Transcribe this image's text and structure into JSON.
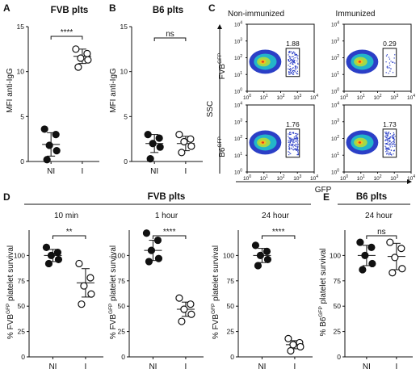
{
  "panels": {
    "A": {
      "letter": "A",
      "title": "FVB plts",
      "ylabel": "MFI anti-IgG",
      "sig": "****"
    },
    "B": {
      "letter": "B",
      "title": "B6 plts",
      "ylabel": "MFI anti-IgG",
      "sig": "ns"
    },
    "C": {
      "letter": "C",
      "col_labels": [
        "Non-immunized",
        "Immunized"
      ],
      "row_labels": [
        "FVB",
        "B6"
      ],
      "row_label_sup": "GFP",
      "xlabel": "GFP",
      "ylabel": "SSC",
      "gate_values": [
        "1.88",
        "0.29",
        "1.76",
        "1.73"
      ],
      "tick_base": "10",
      "tick_exps": [
        "0",
        "1",
        "2",
        "3",
        "4"
      ]
    },
    "D": {
      "letter": "D",
      "group_title": "FVB plts",
      "ylabel_prefix": "% FVB",
      "ylabel_sup": "GFP",
      "ylabel_suffix": " platelet survival"
    },
    "E": {
      "letter": "E",
      "group_title": "B6 plts",
      "ylabel_prefix": "% B6",
      "ylabel_sup": "GFP",
      "ylabel_suffix": " platelet survival"
    }
  },
  "chart_data": [
    {
      "type": "scatter",
      "panel": "A",
      "title": "FVB plts",
      "categories": [
        "NI",
        "I"
      ],
      "ylabel": "MFI anti-IgG",
      "ylim": [
        0,
        15
      ],
      "yticks": [
        0,
        5,
        10,
        15
      ],
      "series": [
        {
          "name": "NI",
          "values": [
            3.6,
            3.0,
            1.8,
            1.2,
            0.2
          ],
          "mean": 1.9,
          "sd": 1.3
        },
        {
          "name": "I",
          "values": [
            12.5,
            12.0,
            11.5,
            11.3,
            10.5
          ],
          "mean": 11.7,
          "sd": 0.8
        }
      ],
      "significance": "****"
    },
    {
      "type": "scatter",
      "panel": "B",
      "title": "B6 plts",
      "categories": [
        "NI",
        "I"
      ],
      "ylabel": "MFI anti-IgG",
      "ylim": [
        0,
        15
      ],
      "yticks": [
        0,
        5,
        10,
        15
      ],
      "series": [
        {
          "name": "NI",
          "values": [
            3.0,
            2.6,
            2.0,
            1.6,
            0.3
          ],
          "mean": 2.0,
          "sd": 1.0
        },
        {
          "name": "I",
          "values": [
            3.0,
            2.5,
            2.2,
            1.7,
            1.0
          ],
          "mean": 2.0,
          "sd": 0.8
        }
      ],
      "significance": "ns"
    },
    {
      "type": "scatter",
      "panel": "D",
      "title": "10 min",
      "categories": [
        "NI",
        "I"
      ],
      "ylim": [
        0,
        125
      ],
      "yticks": [
        0,
        25,
        50,
        75,
        100
      ],
      "series": [
        {
          "name": "NI",
          "values": [
            108,
            103,
            100,
            96,
            92
          ],
          "mean": 100,
          "sd": 6
        },
        {
          "name": "I",
          "values": [
            92,
            78,
            70,
            62,
            52
          ],
          "mean": 73,
          "sd": 14
        }
      ],
      "significance": "**"
    },
    {
      "type": "scatter",
      "panel": "D",
      "title": "1  hour",
      "categories": [
        "NI",
        "I"
      ],
      "ylim": [
        0,
        125
      ],
      "yticks": [
        0,
        25,
        50,
        75,
        100
      ],
      "series": [
        {
          "name": "NI",
          "values": [
            122,
            115,
            105,
            97,
            94
          ],
          "mean": 105,
          "sd": 10
        },
        {
          "name": "I",
          "values": [
            58,
            52,
            47,
            42,
            35
          ],
          "mean": 47,
          "sd": 7
        }
      ],
      "significance": "****"
    },
    {
      "type": "scatter",
      "panel": "D",
      "title": "24  hour",
      "categories": [
        "NI",
        "I"
      ],
      "ylim": [
        0,
        125
      ],
      "yticks": [
        0,
        25,
        50,
        75,
        100
      ],
      "series": [
        {
          "name": "NI",
          "values": [
            110,
            104,
            100,
            96,
            90
          ],
          "mean": 100,
          "sd": 7
        },
        {
          "name": "I",
          "values": [
            18,
            14,
            12,
            10,
            6
          ],
          "mean": 12,
          "sd": 4
        }
      ],
      "significance": "****"
    },
    {
      "type": "scatter",
      "panel": "E",
      "title": "24  hour",
      "categories": [
        "NI",
        "I"
      ],
      "ylim": [
        0,
        125
      ],
      "yticks": [
        0,
        25,
        50,
        75,
        100
      ],
      "series": [
        {
          "name": "NI",
          "values": [
            113,
            108,
            100,
            92,
            86
          ],
          "mean": 100,
          "sd": 10
        },
        {
          "name": "I",
          "values": [
            113,
            107,
            98,
            87,
            83
          ],
          "mean": 99,
          "sd": 13
        }
      ],
      "significance": "ns"
    }
  ]
}
